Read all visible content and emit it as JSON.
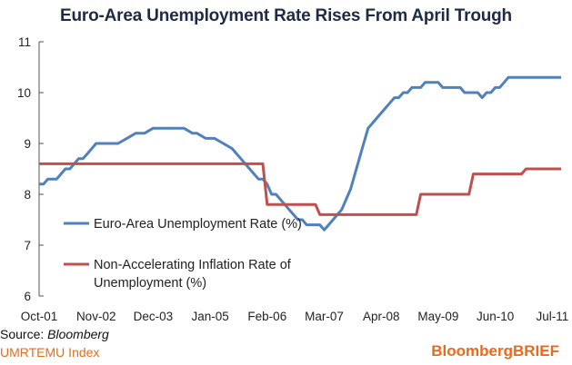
{
  "title": "Euro-Area Unemployment Rate Rises From April Trough",
  "footer": {
    "source_prefix": "Source: ",
    "source_name": "Bloomberg",
    "ticker": "UMRTEMU Index",
    "brand": "BloombergBRIEF"
  },
  "colors": {
    "unemployment": "#4f81bd",
    "nairu": "#c0504d",
    "brand": "#e86b1c",
    "title": "#1f2a44"
  },
  "chart_data": {
    "type": "line",
    "title": "Euro-Area Unemployment Rate Rises From April Trough",
    "xlabel": "",
    "ylabel": "",
    "ylim": [
      6,
      11
    ],
    "yticks": [
      6,
      7,
      8,
      9,
      10,
      11
    ],
    "xticks": [
      "Oct-01",
      "Nov-02",
      "Dec-03",
      "Jan-05",
      "Feb-06",
      "Mar-07",
      "Apr-08",
      "May-09",
      "Jun-10",
      "Jul-11"
    ],
    "grid": false,
    "legend_position": "center-left",
    "series": [
      {
        "name": "Euro-Area Unemployment Rate (%)",
        "color": "#4f81bd",
        "x": [
          "2001-10",
          "2001-11",
          "2001-12",
          "2002-01",
          "2002-02",
          "2002-03",
          "2002-04",
          "2002-05",
          "2002-06",
          "2002-07",
          "2002-08",
          "2002-09",
          "2002-10",
          "2002-11",
          "2002-12",
          "2003-01",
          "2003-02",
          "2003-03",
          "2003-04",
          "2003-06",
          "2003-08",
          "2003-10",
          "2003-12",
          "2004-01",
          "2004-03",
          "2004-05",
          "2004-07",
          "2004-09",
          "2004-10",
          "2004-12",
          "2005-02",
          "2005-04",
          "2005-06",
          "2005-07",
          "2005-08",
          "2005-09",
          "2005-10",
          "2005-11",
          "2005-12",
          "2006-01",
          "2006-02",
          "2006-03",
          "2006-04",
          "2006-05",
          "2006-06",
          "2006-07",
          "2006-08",
          "2006-09",
          "2006-10",
          "2006-11",
          "2006-12",
          "2007-01",
          "2007-02",
          "2007-03",
          "2007-04",
          "2007-05",
          "2007-06",
          "2007-07",
          "2007-08",
          "2007-09",
          "2007-10",
          "2007-11",
          "2007-12",
          "2008-01",
          "2008-02",
          "2008-03",
          "2008-04",
          "2008-05",
          "2008-06",
          "2008-07",
          "2008-08",
          "2008-09",
          "2008-10",
          "2008-11",
          "2008-12",
          "2009-01",
          "2009-02",
          "2009-03",
          "2009-04",
          "2009-05",
          "2009-06",
          "2009-07",
          "2009-08",
          "2009-09",
          "2009-10",
          "2009-11",
          "2009-12",
          "2010-01",
          "2010-02",
          "2010-03",
          "2010-04",
          "2010-05",
          "2010-06",
          "2010-07",
          "2010-08",
          "2010-09",
          "2010-10",
          "2010-11",
          "2010-12",
          "2011-01",
          "2011-02",
          "2011-03",
          "2011-04",
          "2011-05",
          "2011-06",
          "2011-07",
          "2011-08",
          "2011-09"
        ],
        "values": [
          8.2,
          8.2,
          8.3,
          8.3,
          8.3,
          8.4,
          8.5,
          8.5,
          8.6,
          8.7,
          8.7,
          8.8,
          8.9,
          9.0,
          9.0,
          9.0,
          9.0,
          9.0,
          9.0,
          9.1,
          9.2,
          9.2,
          9.3,
          9.3,
          9.3,
          9.3,
          9.3,
          9.2,
          9.2,
          9.1,
          9.1,
          9.0,
          8.9,
          8.8,
          8.7,
          8.6,
          8.5,
          8.4,
          8.3,
          8.3,
          8.2,
          8.0,
          8.0,
          7.9,
          7.8,
          7.7,
          7.6,
          7.5,
          7.5,
          7.4,
          7.4,
          7.4,
          7.4,
          7.3,
          7.4,
          7.5,
          7.6,
          7.7,
          7.9,
          8.1,
          8.4,
          8.7,
          9.0,
          9.3,
          9.4,
          9.5,
          9.6,
          9.7,
          9.8,
          9.9,
          9.9,
          10.0,
          10.0,
          10.1,
          10.1,
          10.1,
          10.2,
          10.2,
          10.2,
          10.2,
          10.1,
          10.1,
          10.1,
          10.1,
          10.1,
          10.0,
          10.0,
          10.0,
          10.0,
          9.9,
          10.0,
          10.0,
          10.1,
          10.1,
          10.2,
          10.3,
          10.3,
          10.3,
          10.3,
          10.3,
          10.3,
          10.3,
          10.3,
          10.3,
          10.3,
          10.3,
          10.3,
          10.3
        ]
      },
      {
        "name": "Non-Accelerating Inflation Rate of Unemployment (%)",
        "name_lines": [
          "Non-Accelerating Inflation Rate of",
          "Unemployment (%)"
        ],
        "color": "#c0504d",
        "x": [
          "2001-10",
          "2006-01",
          "2006-02",
          "2007-01",
          "2007-02",
          "2008-12",
          "2009-01",
          "2009-12",
          "2010-01",
          "2010-12",
          "2011-01",
          "2011-09"
        ],
        "values": [
          8.6,
          8.6,
          7.8,
          7.8,
          7.6,
          7.6,
          8.0,
          8.0,
          8.4,
          8.4,
          8.5,
          8.5
        ]
      }
    ]
  }
}
